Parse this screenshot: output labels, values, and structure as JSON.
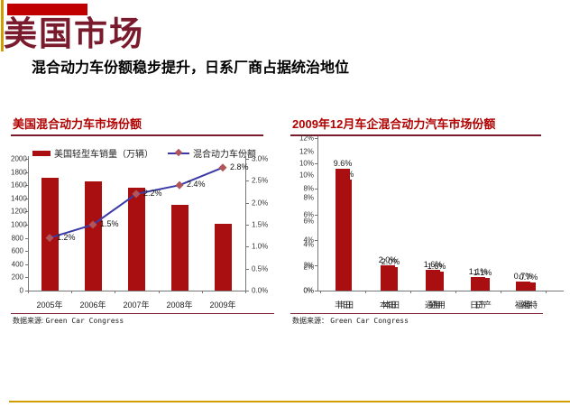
{
  "page": {
    "title": "美国市场",
    "subtitle": "混合动力车份额稳步提升，日系厂商占据统治地位"
  },
  "colors": {
    "maroon": "#7A1A2D",
    "chart_title_red": "#B00000",
    "bar_red": "#A90E10",
    "line_blue": "#3B3BA8",
    "marker_red": "#B0565B",
    "gold": "#D19D00",
    "top_bar_red": "#C00000"
  },
  "left_chart": {
    "title": "美国混合动力车市场份额",
    "legend": [
      {
        "label": "美国轻型车销量（万辆）",
        "type": "bar-swatch"
      },
      {
        "label": "混合动力车份额",
        "type": "line-swatch"
      }
    ],
    "left_axis_ticks": [
      "2000",
      "1800",
      "1600",
      "1400",
      "1200",
      "1000",
      "800",
      "600",
      "400",
      "200",
      "0"
    ],
    "right_axis_ticks": [
      "3.0%",
      "2.5%",
      "2.0%",
      "1.5%",
      "1.0%",
      "0.5%",
      "0.0%"
    ],
    "categories": [
      "2005年",
      "2006年",
      "2007年",
      "2008年",
      "2009年"
    ],
    "point_labels": [
      "1.2%",
      "1.5%",
      "2.2%",
      "2.4%",
      "2.8%"
    ],
    "source_label": "数据来源:",
    "source": "Green Car Congress"
  },
  "right_chart": {
    "title": "2009年12月车企混合动力汽车市场份额",
    "y_axis_ticks": [
      "12%",
      "10%",
      "8%",
      "6%",
      "4%",
      "2%",
      "0%"
    ],
    "categories": [
      "丰田",
      "本田",
      "通用",
      "日产",
      "福特"
    ],
    "value_labels": [
      "9.6%",
      "2.0%",
      "1.6%",
      "1.1%",
      "0.7%"
    ],
    "source_label": "数据来源：",
    "source": "Green Car Congress"
  },
  "chart_data": [
    {
      "type": "bar",
      "title": "美国混合动力车市场份额",
      "categories": [
        "2005年",
        "2006年",
        "2007年",
        "2008年",
        "2009年"
      ],
      "series": [
        {
          "name": "美国轻型车销量（万辆）",
          "render": "bar",
          "axis": "left",
          "values": [
            1710,
            1660,
            1565,
            1300,
            1020
          ]
        },
        {
          "name": "混合动力车份额",
          "render": "line",
          "axis": "right",
          "unit": "%",
          "values": [
            1.2,
            1.5,
            2.2,
            2.4,
            2.8
          ]
        }
      ],
      "left_ylim": [
        0,
        2000
      ],
      "right_ylim_pct": [
        0,
        3.0
      ],
      "legend_position": "top",
      "grid": false
    },
    {
      "type": "bar",
      "title": "2009年12月车企混合动力汽车市场份额",
      "categories": [
        "丰田",
        "本田",
        "通用",
        "日产",
        "福特"
      ],
      "values": [
        9.6,
        2.0,
        1.6,
        1.1,
        0.7
      ],
      "unit": "%",
      "ylim": [
        0,
        12
      ],
      "grid": false,
      "rendering_artifact": "chart is drawn twice with a slight offset (ghost duplicate of bars, value labels, category labels and y-axis labels)"
    }
  ]
}
